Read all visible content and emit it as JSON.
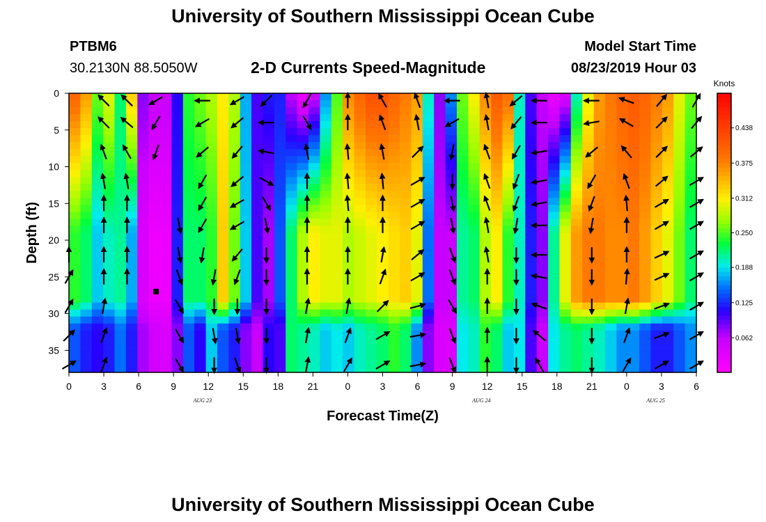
{
  "page": {
    "title": "University of Southern Mississippi Ocean Cube",
    "footer_title": "University of Southern Mississippi Ocean Cube",
    "station_id": "PTBM6",
    "station_coords": "30.2130N 88.5050W",
    "model_start_label": "Model Start Time",
    "model_start_value": "08/23/2019 Hour 03"
  },
  "chart_data": {
    "type": "heatmap",
    "title": "2-D Currents Speed-Magnitude",
    "xlabel": "Forecast Time(Z)",
    "ylabel": "Depth (ft)",
    "colorbar_label": "Knots",
    "xlim": [
      0,
      54
    ],
    "ylim": [
      0,
      38
    ],
    "y_inverted": true,
    "x_tick_values": [
      0,
      3,
      6,
      9,
      12,
      15,
      18,
      21,
      24,
      27,
      30,
      33,
      36,
      39,
      42,
      45,
      48,
      51,
      54
    ],
    "x_tick_labels": [
      "0",
      "3",
      "6",
      "9",
      "12",
      "15",
      "18",
      "21",
      "0",
      "3",
      "6",
      "9",
      "12",
      "15",
      "18",
      "21",
      "0",
      "3",
      "6"
    ],
    "date_labels": [
      {
        "label": "AUG 23",
        "x": 11.5
      },
      {
        "label": "AUG 24",
        "x": 35.5
      },
      {
        "label": "AUG 25",
        "x": 50.5
      }
    ],
    "y_ticks": [
      0,
      5,
      10,
      15,
      20,
      25,
      30,
      35
    ],
    "colorbar": {
      "min": 0,
      "max": 0.5,
      "ticks": [
        "0.438",
        "0.375",
        "0.312",
        "0.250",
        "0.188",
        "0.125",
        "0.062"
      ],
      "tick_values": [
        0.438,
        0.375,
        0.312,
        0.25,
        0.188,
        0.125,
        0.062
      ]
    },
    "speed_columns": [
      {
        "x": 0,
        "top": 0.4,
        "mid": 0.24,
        "bot": 0.14
      },
      {
        "x": 1,
        "top": 0.36,
        "mid": 0.22,
        "bot": 0.12
      },
      {
        "x": 2,
        "top": 0.26,
        "mid": 0.18,
        "bot": 0.11
      },
      {
        "x": 3,
        "top": 0.3,
        "mid": 0.2,
        "bot": 0.12
      },
      {
        "x": 4,
        "top": 0.22,
        "mid": 0.21,
        "bot": 0.15
      },
      {
        "x": 5,
        "top": 0.33,
        "mid": 0.17,
        "bot": 0.12
      },
      {
        "x": 6,
        "top": 0.08,
        "mid": 0.04,
        "bot": 0.07
      },
      {
        "x": 7,
        "top": 0.06,
        "mid": 0.02,
        "bot": 0.05
      },
      {
        "x": 8,
        "top": 0.06,
        "mid": 0.02,
        "bot": 0.04
      },
      {
        "x": 9,
        "top": 0.11,
        "mid": 0.12,
        "bot": 0.08
      },
      {
        "x": 10,
        "top": 0.24,
        "mid": 0.22,
        "bot": 0.14
      },
      {
        "x": 11,
        "top": 0.26,
        "mid": 0.22,
        "bot": 0.11
      },
      {
        "x": 12,
        "top": 0.28,
        "mid": 0.24,
        "bot": 0.18
      },
      {
        "x": 13,
        "top": 0.31,
        "mid": 0.33,
        "bot": 0.14
      },
      {
        "x": 14,
        "top": 0.28,
        "mid": 0.26,
        "bot": 0.12
      },
      {
        "x": 15,
        "top": 0.17,
        "mid": 0.18,
        "bot": 0.08
      },
      {
        "x": 16,
        "top": 0.1,
        "mid": 0.1,
        "bot": 0.06
      },
      {
        "x": 17,
        "top": 0.12,
        "mid": 0.07,
        "bot": 0.11
      },
      {
        "x": 18,
        "top": 0.12,
        "mid": 0.14,
        "bot": 0.1
      },
      {
        "x": 19,
        "top": 0.06,
        "mid": 0.22,
        "bot": 0.22
      },
      {
        "x": 20,
        "top": 0.02,
        "mid": 0.28,
        "bot": 0.21
      },
      {
        "x": 21,
        "top": 0.05,
        "mid": 0.31,
        "bot": 0.2
      },
      {
        "x": 22,
        "top": 0.16,
        "mid": 0.3,
        "bot": 0.18
      },
      {
        "x": 23,
        "top": 0.25,
        "mid": 0.3,
        "bot": 0.19
      },
      {
        "x": 24,
        "top": 0.37,
        "mid": 0.28,
        "bot": 0.18
      },
      {
        "x": 25,
        "top": 0.4,
        "mid": 0.29,
        "bot": 0.2
      },
      {
        "x": 26,
        "top": 0.42,
        "mid": 0.3,
        "bot": 0.21
      },
      {
        "x": 27,
        "top": 0.42,
        "mid": 0.31,
        "bot": 0.22
      },
      {
        "x": 28,
        "top": 0.4,
        "mid": 0.32,
        "bot": 0.24
      },
      {
        "x": 29,
        "top": 0.38,
        "mid": 0.33,
        "bot": 0.22
      },
      {
        "x": 30,
        "top": 0.36,
        "mid": 0.3,
        "bot": 0.16
      },
      {
        "x": 31,
        "top": 0.2,
        "mid": 0.15,
        "bot": 0.08
      },
      {
        "x": 32,
        "top": 0.08,
        "mid": 0.06,
        "bot": 0.04
      },
      {
        "x": 33,
        "top": 0.16,
        "mid": 0.06,
        "bot": 0.04
      },
      {
        "x": 34,
        "top": 0.26,
        "mid": 0.21,
        "bot": 0.19
      },
      {
        "x": 35,
        "top": 0.31,
        "mid": 0.22,
        "bot": 0.2
      },
      {
        "x": 36,
        "top": 0.37,
        "mid": 0.28,
        "bot": 0.24
      },
      {
        "x": 37,
        "top": 0.41,
        "mid": 0.31,
        "bot": 0.22
      },
      {
        "x": 38,
        "top": 0.39,
        "mid": 0.24,
        "bot": 0.18
      },
      {
        "x": 39,
        "top": 0.2,
        "mid": 0.2,
        "bot": 0.19
      },
      {
        "x": 40,
        "top": 0.1,
        "mid": 0.12,
        "bot": 0.1
      },
      {
        "x": 41,
        "top": 0.06,
        "mid": 0.08,
        "bot": 0.06
      },
      {
        "x": 42,
        "top": 0.02,
        "mid": 0.21,
        "bot": 0.19
      },
      {
        "x": 43,
        "top": 0.04,
        "mid": 0.3,
        "bot": 0.21
      },
      {
        "x": 44,
        "top": 0.2,
        "mid": 0.36,
        "bot": 0.22
      },
      {
        "x": 45,
        "top": 0.3,
        "mid": 0.38,
        "bot": 0.21
      },
      {
        "x": 46,
        "top": 0.36,
        "mid": 0.38,
        "bot": 0.2
      },
      {
        "x": 47,
        "top": 0.38,
        "mid": 0.37,
        "bot": 0.18
      },
      {
        "x": 48,
        "top": 0.4,
        "mid": 0.37,
        "bot": 0.16
      },
      {
        "x": 49,
        "top": 0.41,
        "mid": 0.38,
        "bot": 0.16
      },
      {
        "x": 50,
        "top": 0.4,
        "mid": 0.36,
        "bot": 0.14
      },
      {
        "x": 51,
        "top": 0.38,
        "mid": 0.33,
        "bot": 0.12
      },
      {
        "x": 52,
        "top": 0.36,
        "mid": 0.3,
        "bot": 0.12
      },
      {
        "x": 53,
        "top": 0.3,
        "mid": 0.26,
        "bot": 0.14
      },
      {
        "x": 54,
        "top": 0.26,
        "mid": 0.22,
        "bot": 0.16
      }
    ],
    "vector_rows_depth": [
      1,
      4,
      8,
      12,
      15,
      18,
      22,
      25,
      29,
      33,
      37
    ],
    "vector_columns": [
      {
        "x": 0,
        "dirs": [
          null,
          null,
          null,
          null,
          null,
          null,
          90,
          60,
          60,
          45,
          30
        ]
      },
      {
        "x": 3,
        "dirs": [
          135,
          135,
          110,
          100,
          90,
          90,
          90,
          90,
          80,
          70,
          70
        ]
      },
      {
        "x": 5,
        "dirs": [
          135,
          140,
          120,
          100,
          90,
          90,
          90,
          90,
          null,
          null,
          null
        ]
      },
      {
        "x": 7.5,
        "dirs": [
          210,
          240,
          250,
          null,
          null,
          null,
          null,
          null,
          null,
          null,
          null
        ]
      },
      {
        "x": 9.5,
        "dirs": [
          null,
          null,
          null,
          null,
          null,
          280,
          280,
          290,
          300,
          300,
          300
        ]
      },
      {
        "x": 11.5,
        "dirs": [
          180,
          210,
          220,
          240,
          240,
          240,
          260,
          null,
          null,
          null,
          null
        ]
      },
      {
        "x": 12.5,
        "dirs": [
          null,
          null,
          null,
          null,
          null,
          null,
          null,
          260,
          270,
          280,
          270
        ]
      },
      {
        "x": 14.5,
        "dirs": [
          210,
          220,
          230,
          220,
          210,
          210,
          230,
          250,
          270,
          280,
          290
        ]
      },
      {
        "x": 17,
        "dirs": [
          225,
          180,
          170,
          330,
          300,
          280,
          270,
          270,
          270,
          270,
          270
        ]
      },
      {
        "x": 20.5,
        "dirs": [
          240,
          300,
          100,
          90,
          90,
          90,
          90,
          90,
          80,
          80,
          80
        ]
      },
      {
        "x": 24,
        "dirs": [
          90,
          90,
          95,
          95,
          95,
          90,
          90,
          90,
          80,
          70,
          60
        ]
      },
      {
        "x": 27,
        "dirs": [
          120,
          110,
          100,
          95,
          90,
          90,
          80,
          70,
          45,
          30,
          30
        ]
      },
      {
        "x": 30,
        "dirs": [
          110,
          100,
          45,
          30,
          30,
          30,
          40,
          30,
          15,
          10,
          10
        ]
      },
      {
        "x": 33,
        "dirs": [
          180,
          210,
          260,
          270,
          280,
          280,
          290,
          290,
          300,
          290,
          290
        ]
      },
      {
        "x": 36,
        "dirs": [
          100,
          100,
          110,
          110,
          110,
          100,
          100,
          90,
          90,
          90,
          90
        ]
      },
      {
        "x": 38.5,
        "dirs": [
          220,
          230,
          240,
          250,
          250,
          260,
          270,
          270,
          270,
          270,
          270
        ]
      },
      {
        "x": 40.5,
        "dirs": [
          180,
          180,
          190,
          190,
          190,
          180,
          180,
          170,
          160,
          140,
          120
        ]
      },
      {
        "x": 45,
        "dirs": [
          180,
          190,
          220,
          240,
          250,
          260,
          270,
          270,
          270,
          270,
          270
        ]
      },
      {
        "x": 48,
        "dirs": [
          160,
          150,
          130,
          110,
          95,
          90,
          90,
          85,
          80,
          70,
          60
        ]
      },
      {
        "x": 51,
        "dirs": [
          50,
          45,
          45,
          40,
          30,
          30,
          25,
          25,
          20,
          20,
          30
        ]
      },
      {
        "x": 54,
        "dirs": [
          60,
          50,
          40,
          30,
          30,
          30,
          30,
          30,
          30,
          30,
          30
        ]
      }
    ],
    "square_marker": {
      "x": 7.5,
      "depth": 27
    }
  }
}
